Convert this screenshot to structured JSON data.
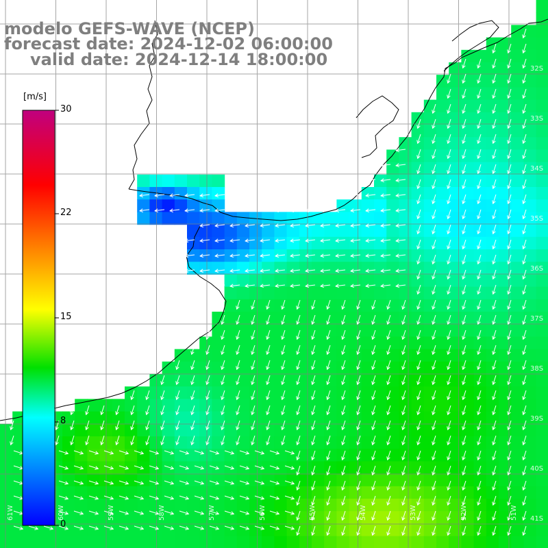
{
  "title": {
    "line1": "modelo GEFS-WAVE (NCEP)",
    "line2": "forecast date: 2024-12-02 06:00:00",
    "line3": "valid date: 2024-12-14 18:00:00"
  },
  "colorbar": {
    "unit": "[m/s]",
    "ticks": [
      "30",
      "22",
      "15",
      "8",
      "0"
    ],
    "colors": [
      "#c0007f",
      "#ff0000",
      "#ff8000",
      "#ffff00",
      "#00e000",
      "#00ffff",
      "#0000ff"
    ]
  },
  "map": {
    "lat_labels": [
      "32S",
      "33S",
      "34S",
      "35S",
      "36S",
      "37S",
      "38S",
      "39S",
      "40S",
      "41S"
    ],
    "lon_labels": [
      "61W",
      "60W",
      "59W",
      "58W",
      "57W",
      "56W",
      "55W",
      "54W",
      "53W",
      "52W",
      "51W"
    ]
  }
}
